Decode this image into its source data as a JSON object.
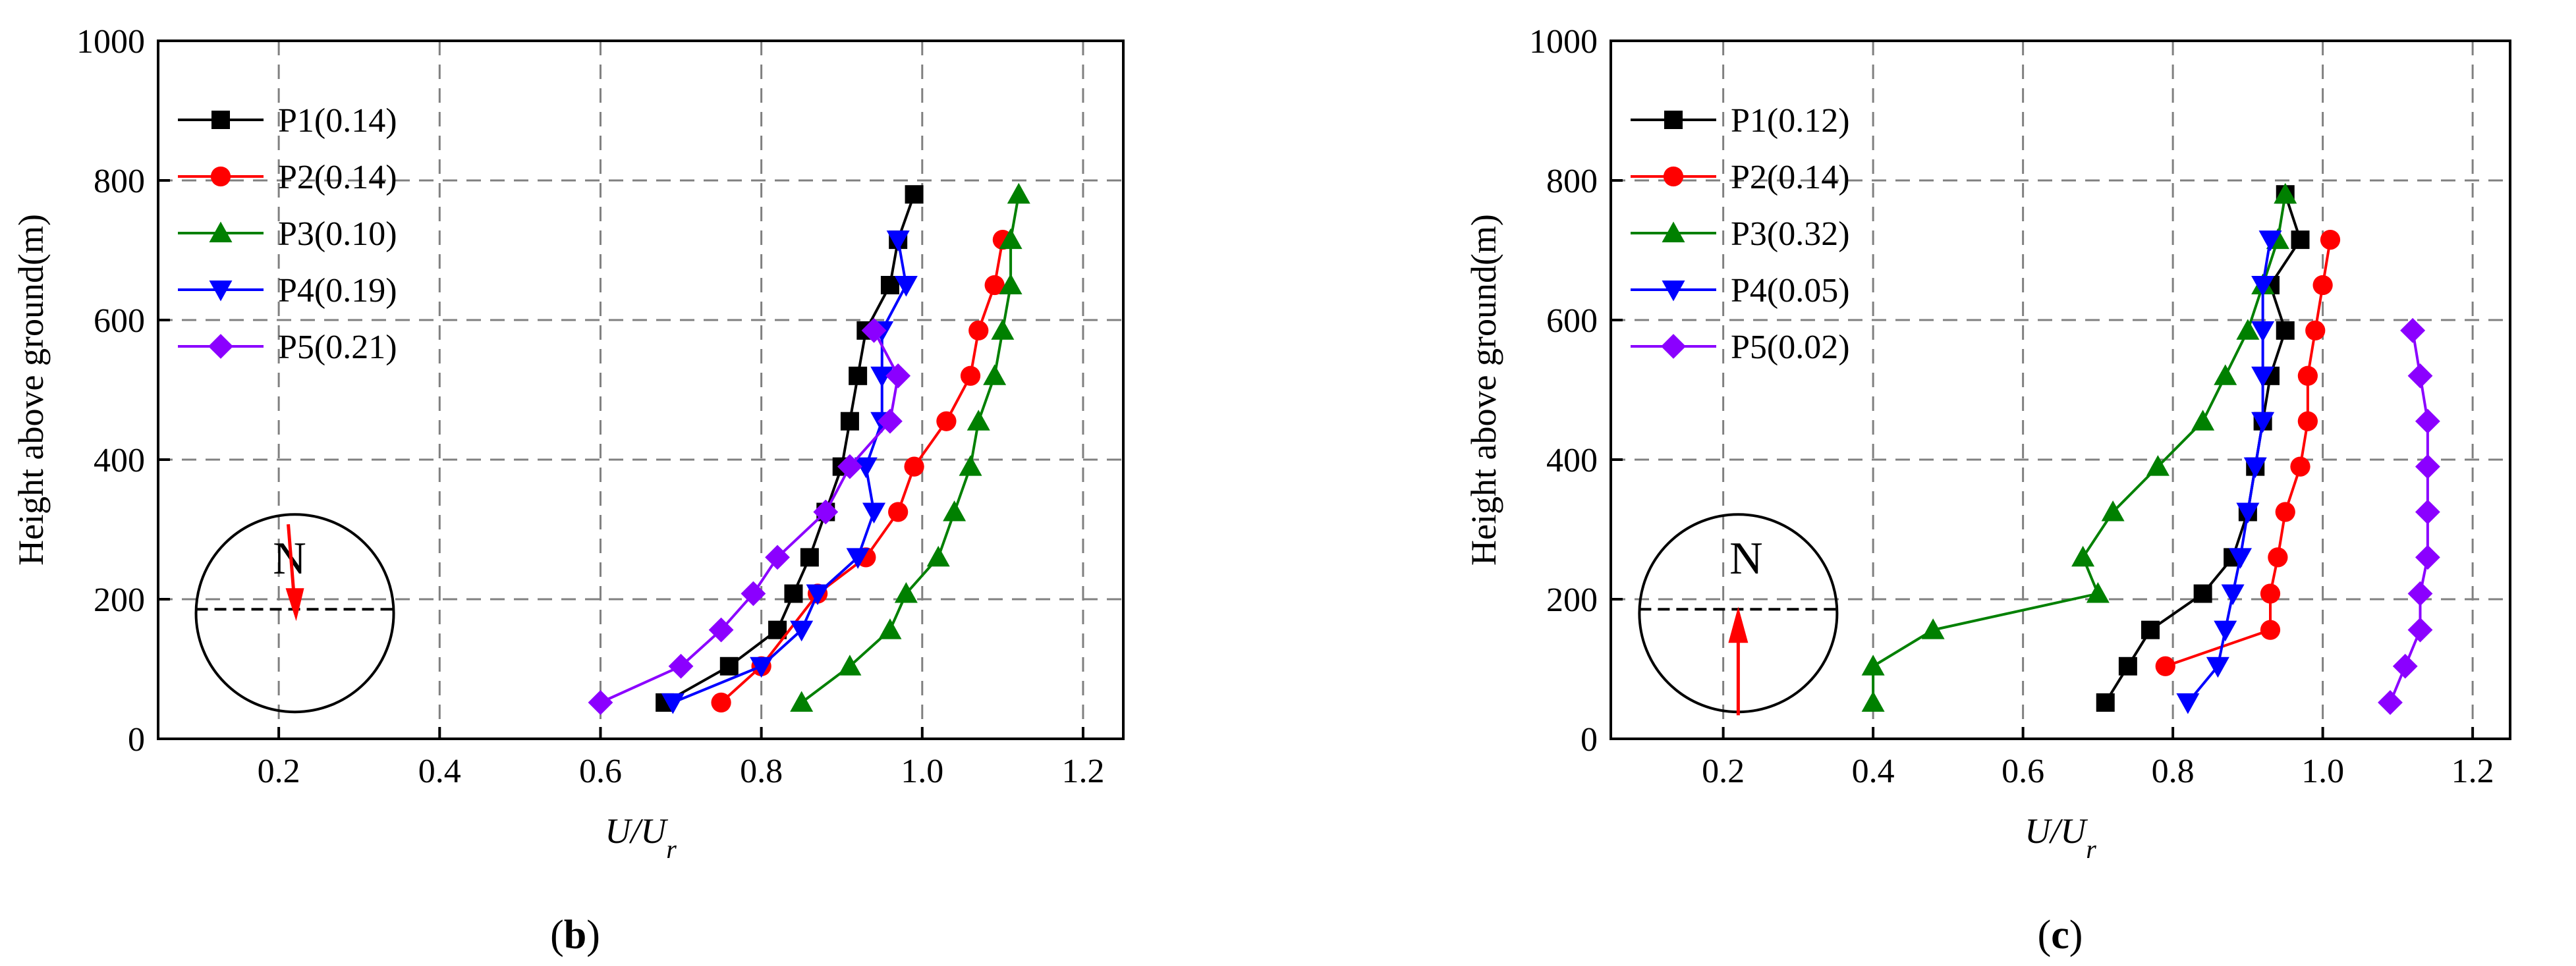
{
  "chart_data": [
    {
      "type": "line",
      "panel_label": "b",
      "xlabel": {
        "main": "U/U",
        "sub": "r"
      },
      "ylabel": "Height above ground(m)",
      "xlim": [
        0.05,
        1.25
      ],
      "ylim": [
        0,
        1000
      ],
      "xticks": [
        0.2,
        0.4,
        0.6,
        0.8,
        1.0,
        1.2
      ],
      "xtick_labels": [
        "0.2",
        "0.4",
        "0.6",
        "0.8",
        "1.0",
        "1.2"
      ],
      "yticks": [
        0,
        200,
        400,
        600,
        800,
        1000
      ],
      "ytick_labels": [
        "0",
        "200",
        "400",
        "600",
        "800",
        "1000"
      ],
      "grid": true,
      "legend_position": "top-left",
      "compass": {
        "label": "N",
        "arrow": "down"
      },
      "series": [
        {
          "name": "P1(0.14)",
          "color": "#000000",
          "marker": "square",
          "x": [
            0.68,
            0.76,
            0.82,
            0.84,
            0.86,
            0.88,
            0.9,
            0.91,
            0.92,
            0.93,
            0.96,
            0.97,
            0.99
          ],
          "y": [
            52,
            104,
            156,
            208,
            260,
            325,
            390,
            455,
            520,
            585,
            650,
            715,
            780
          ]
        },
        {
          "name": "P2(0.14)",
          "color": "#ff0000",
          "marker": "circle",
          "x": [
            0.75,
            0.8,
            0.87,
            0.93,
            0.97,
            0.99,
            1.03,
            1.06,
            1.07,
            1.09,
            1.1
          ],
          "y": [
            52,
            104,
            208,
            260,
            325,
            390,
            455,
            520,
            585,
            650,
            715
          ]
        },
        {
          "name": "P3(0.10)",
          "color": "#008000",
          "marker": "triangle-up",
          "x": [
            0.85,
            0.91,
            0.96,
            0.98,
            1.02,
            1.04,
            1.06,
            1.07,
            1.09,
            1.1,
            1.11,
            1.11,
            1.12
          ],
          "y": [
            52,
            104,
            156,
            208,
            260,
            325,
            390,
            455,
            520,
            585,
            650,
            715,
            780
          ]
        },
        {
          "name": "P4(0.19)",
          "color": "#0000ff",
          "marker": "triangle-down",
          "x": [
            0.69,
            0.8,
            0.85,
            0.87,
            0.92,
            0.94,
            0.93,
            0.95,
            0.95,
            0.95,
            0.98,
            0.97
          ],
          "y": [
            52,
            104,
            156,
            208,
            260,
            325,
            390,
            455,
            520,
            585,
            650,
            715
          ]
        },
        {
          "name": "P5(0.21)",
          "color": "#8b00ff",
          "marker": "diamond",
          "x": [
            0.6,
            0.7,
            0.75,
            0.79,
            0.82,
            0.88,
            0.91,
            0.96,
            0.97,
            0.94
          ],
          "y": [
            52,
            104,
            156,
            208,
            260,
            325,
            390,
            455,
            520,
            585
          ]
        }
      ]
    },
    {
      "type": "line",
      "panel_label": "c",
      "xlabel": {
        "main": "U/U",
        "sub": "r"
      },
      "ylabel": "Height above ground(m)",
      "xlim": [
        0.05,
        1.25
      ],
      "ylim": [
        0,
        1000
      ],
      "xticks": [
        0.2,
        0.4,
        0.6,
        0.8,
        1.0,
        1.2
      ],
      "xtick_labels": [
        "0.2",
        "0.4",
        "0.6",
        "0.8",
        "1.0",
        "1.2"
      ],
      "yticks": [
        0,
        200,
        400,
        600,
        800,
        1000
      ],
      "ytick_labels": [
        "0",
        "200",
        "400",
        "600",
        "800",
        "1000"
      ],
      "grid": true,
      "legend_position": "top-left",
      "compass": {
        "label": "N",
        "arrow": "up"
      },
      "series": [
        {
          "name": "P1(0.12)",
          "color": "#000000",
          "marker": "square",
          "x": [
            0.71,
            0.74,
            0.77,
            0.84,
            0.88,
            0.9,
            0.91,
            0.92,
            0.93,
            0.95,
            0.93,
            0.97,
            0.95
          ],
          "y": [
            52,
            104,
            156,
            208,
            260,
            325,
            390,
            455,
            520,
            585,
            650,
            715,
            780
          ]
        },
        {
          "name": "P2(0.14)",
          "color": "#ff0000",
          "marker": "circle",
          "x": [
            0.79,
            0.93,
            0.93,
            0.94,
            0.95,
            0.97,
            0.98,
            0.98,
            0.99,
            1.0,
            1.01
          ],
          "y": [
            104,
            156,
            208,
            260,
            325,
            390,
            455,
            520,
            585,
            650,
            715
          ]
        },
        {
          "name": "P3(0.32)",
          "color": "#008000",
          "marker": "triangle-up",
          "x": [
            0.4,
            0.4,
            0.48,
            0.7,
            0.68,
            0.72,
            0.78,
            0.84,
            0.87,
            0.9,
            0.92,
            0.94,
            0.95
          ],
          "y": [
            52,
            104,
            156,
            208,
            260,
            325,
            390,
            455,
            520,
            585,
            650,
            715,
            780
          ]
        },
        {
          "name": "P4(0.05)",
          "color": "#0000ff",
          "marker": "triangle-down",
          "x": [
            0.82,
            0.86,
            0.87,
            0.88,
            0.89,
            0.9,
            0.91,
            0.92,
            0.92,
            0.92,
            0.92,
            0.93
          ],
          "y": [
            52,
            104,
            156,
            208,
            260,
            325,
            390,
            455,
            520,
            585,
            650,
            715
          ]
        },
        {
          "name": "P5(0.02)",
          "color": "#8b00ff",
          "marker": "diamond",
          "x": [
            1.09,
            1.11,
            1.13,
            1.13,
            1.14,
            1.14,
            1.14,
            1.14,
            1.13,
            1.12,
            1.12
          ],
          "y": [
            52,
            104,
            156,
            208,
            260,
            325,
            390,
            455,
            520,
            585,
            585
          ]
        }
      ]
    }
  ]
}
